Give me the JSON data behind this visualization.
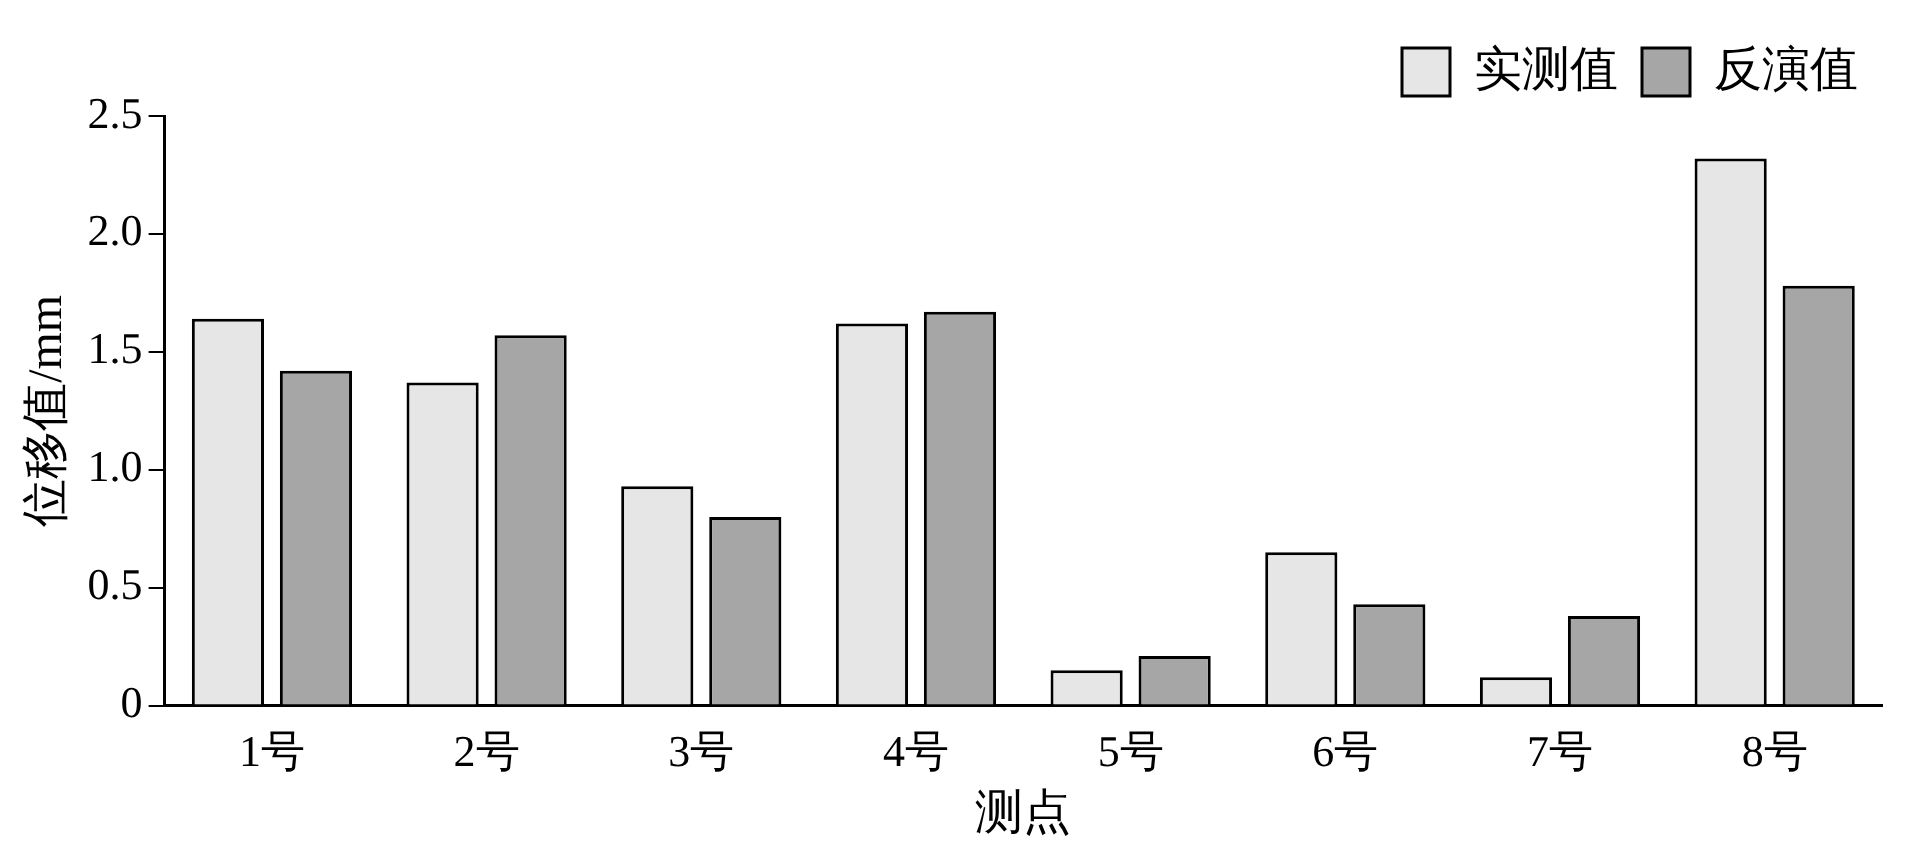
{
  "chart_data": {
    "type": "bar",
    "xlabel": "测点",
    "ylabel": "位移值/mm",
    "categories": [
      "1号",
      "2号",
      "3号",
      "4号",
      "5号",
      "6号",
      "7号",
      "8号"
    ],
    "series": [
      {
        "name": "实测值",
        "color": "#e6e6e6",
        "values": [
          1.64,
          1.37,
          0.93,
          1.62,
          0.15,
          0.65,
          0.12,
          2.32
        ]
      },
      {
        "name": "反演值",
        "color": "#a6a6a6",
        "values": [
          1.42,
          1.57,
          0.8,
          1.67,
          0.21,
          0.43,
          0.38,
          1.78
        ]
      }
    ],
    "ylim": [
      0,
      2.5
    ],
    "yticks": [
      0,
      {
        "value": 0.5,
        "label": "0.5"
      },
      {
        "value": 1,
        "label": "1.0"
      },
      {
        "value": 1.5,
        "label": "1.5"
      },
      {
        "value": 2,
        "label": "2.0"
      },
      {
        "value": 2.5,
        "label": "2.5"
      }
    ],
    "grid": false,
    "legend": "top right"
  }
}
